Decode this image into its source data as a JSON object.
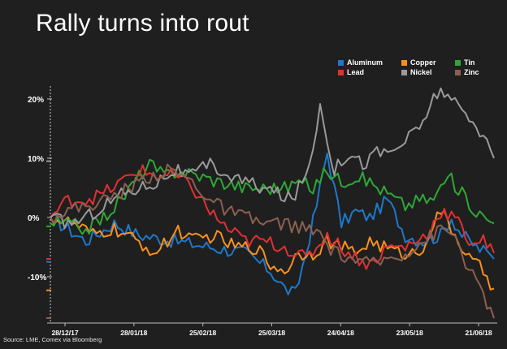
{
  "title": "Rally turns into rout",
  "source": "Source: LME, Comex via Bloomberg",
  "chart_data": {
    "type": "line",
    "title": "Rally turns into rout",
    "ylim": [
      -17,
      23
    ],
    "y_ticks": [
      20,
      10,
      0,
      -10
    ],
    "y_tick_labels": [
      "20%",
      "10%",
      "0%",
      "-10%"
    ],
    "x_tick_labels": [
      "28/12/17",
      "28/01/18",
      "25/02/18",
      "25/03/18",
      "24/04/18",
      "23/05/18",
      "21/06/18"
    ],
    "n_points": 126,
    "grid": false,
    "legend_position": "top-right",
    "series": [
      {
        "name": "Aluminum",
        "color": "#1f78c8",
        "knots": [
          [
            0,
            0
          ],
          [
            5,
            -2
          ],
          [
            10,
            -4
          ],
          [
            18,
            -1
          ],
          [
            25,
            -3
          ],
          [
            35,
            -4
          ],
          [
            45,
            -5
          ],
          [
            55,
            -6
          ],
          [
            62,
            -9
          ],
          [
            66,
            -12
          ],
          [
            69,
            -13
          ],
          [
            72,
            -6
          ],
          [
            75,
            2
          ],
          [
            78,
            11
          ],
          [
            82,
            -1
          ],
          [
            86,
            1
          ],
          [
            90,
            0
          ],
          [
            95,
            3
          ],
          [
            100,
            -3
          ],
          [
            105,
            -4
          ],
          [
            110,
            -3
          ],
          [
            113,
            0
          ],
          [
            116,
            -3
          ],
          [
            120,
            -5
          ],
          [
            123,
            -6
          ],
          [
            125,
            -7
          ]
        ],
        "end_marker": -7.5
      },
      {
        "name": "Copper",
        "color": "#f7901e",
        "knots": [
          [
            0,
            0
          ],
          [
            6,
            -1
          ],
          [
            12,
            -3
          ],
          [
            18,
            -2
          ],
          [
            24,
            -4
          ],
          [
            30,
            -6
          ],
          [
            36,
            -2
          ],
          [
            40,
            -4
          ],
          [
            46,
            -3
          ],
          [
            52,
            -5
          ],
          [
            58,
            -5
          ],
          [
            62,
            -8
          ],
          [
            66,
            -9
          ],
          [
            70,
            -6
          ],
          [
            74,
            -6
          ],
          [
            78,
            -4
          ],
          [
            82,
            -5
          ],
          [
            86,
            -6
          ],
          [
            90,
            -4
          ],
          [
            94,
            -5
          ],
          [
            98,
            -6
          ],
          [
            104,
            -6
          ],
          [
            108,
            -1
          ],
          [
            110,
            1
          ],
          [
            114,
            -3
          ],
          [
            118,
            -7
          ],
          [
            122,
            -9
          ],
          [
            125,
            -12
          ]
        ],
        "end_marker": -12.3
      },
      {
        "name": "Tin",
        "color": "#2ea836",
        "knots": [
          [
            0,
            -1
          ],
          [
            5,
            -1
          ],
          [
            10,
            -2
          ],
          [
            15,
            0
          ],
          [
            20,
            3
          ],
          [
            25,
            7
          ],
          [
            28,
            9
          ],
          [
            32,
            7
          ],
          [
            36,
            8
          ],
          [
            42,
            7
          ],
          [
            48,
            6
          ],
          [
            55,
            5
          ],
          [
            60,
            5
          ],
          [
            66,
            5
          ],
          [
            70,
            6
          ],
          [
            74,
            5
          ],
          [
            78,
            8
          ],
          [
            82,
            6
          ],
          [
            86,
            7
          ],
          [
            90,
            6
          ],
          [
            95,
            4
          ],
          [
            100,
            2
          ],
          [
            104,
            3
          ],
          [
            108,
            3
          ],
          [
            112,
            7
          ],
          [
            116,
            4
          ],
          [
            120,
            1
          ],
          [
            125,
            -1
          ]
        ],
        "end_marker": -1.5
      },
      {
        "name": "Lead",
        "color": "#e03131",
        "knots": [
          [
            0,
            0
          ],
          [
            5,
            3
          ],
          [
            10,
            3
          ],
          [
            15,
            4
          ],
          [
            20,
            6
          ],
          [
            25,
            8
          ],
          [
            30,
            7
          ],
          [
            35,
            7
          ],
          [
            40,
            5
          ],
          [
            45,
            1
          ],
          [
            50,
            -2
          ],
          [
            55,
            -4
          ],
          [
            60,
            -4
          ],
          [
            66,
            -5
          ],
          [
            72,
            -7
          ],
          [
            78,
            -3
          ],
          [
            84,
            -6
          ],
          [
            90,
            -8
          ],
          [
            95,
            -5
          ],
          [
            100,
            -5
          ],
          [
            106,
            -3
          ],
          [
            110,
            1
          ],
          [
            114,
            0
          ],
          [
            118,
            -4
          ],
          [
            122,
            -4
          ],
          [
            125,
            -6
          ]
        ],
        "end_marker": -7
      },
      {
        "name": "Nickel",
        "color": "#9a9a9a",
        "knots": [
          [
            0,
            0
          ],
          [
            5,
            -1
          ],
          [
            10,
            0
          ],
          [
            15,
            2
          ],
          [
            20,
            4
          ],
          [
            25,
            5
          ],
          [
            30,
            6
          ],
          [
            35,
            8
          ],
          [
            40,
            7
          ],
          [
            45,
            9
          ],
          [
            50,
            7
          ],
          [
            55,
            6
          ],
          [
            60,
            5
          ],
          [
            64,
            4
          ],
          [
            68,
            3
          ],
          [
            72,
            7
          ],
          [
            74,
            12
          ],
          [
            76,
            19
          ],
          [
            80,
            8
          ],
          [
            84,
            11
          ],
          [
            88,
            9
          ],
          [
            92,
            11
          ],
          [
            96,
            11
          ],
          [
            100,
            13
          ],
          [
            104,
            15
          ],
          [
            108,
            20
          ],
          [
            110,
            22
          ],
          [
            112,
            20
          ],
          [
            116,
            18
          ],
          [
            120,
            15
          ],
          [
            123,
            14
          ],
          [
            125,
            10
          ]
        ],
        "end_marker": 9.5
      },
      {
        "name": "Zinc",
        "color": "#8d5f50",
        "knots": [
          [
            0,
            0
          ],
          [
            4,
            1
          ],
          [
            10,
            2
          ],
          [
            16,
            3
          ],
          [
            22,
            5
          ],
          [
            28,
            7
          ],
          [
            34,
            8
          ],
          [
            40,
            6
          ],
          [
            45,
            3
          ],
          [
            50,
            1
          ],
          [
            55,
            0
          ],
          [
            60,
            -1
          ],
          [
            66,
            -1
          ],
          [
            72,
            -2
          ],
          [
            76,
            -3
          ],
          [
            80,
            -6
          ],
          [
            85,
            -7
          ],
          [
            90,
            -8
          ],
          [
            95,
            -7
          ],
          [
            100,
            -6
          ],
          [
            105,
            -4
          ],
          [
            110,
            -2
          ],
          [
            114,
            -3
          ],
          [
            118,
            -9
          ],
          [
            122,
            -13
          ],
          [
            125,
            -17
          ]
        ],
        "end_marker": -17
      }
    ]
  }
}
